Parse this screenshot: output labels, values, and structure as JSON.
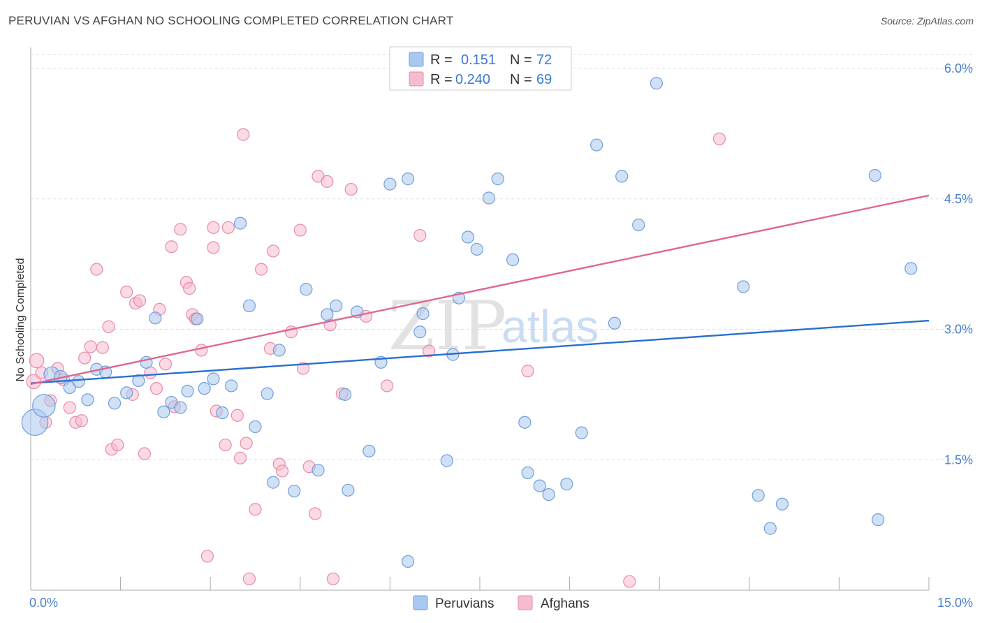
{
  "title": "PERUVIAN VS AFGHAN NO SCHOOLING COMPLETED CORRELATION CHART",
  "source": "Source: ZipAtlas.com",
  "colors": {
    "blue_fill": "#a9c8ef",
    "blue_stroke": "#6f9fdc",
    "blue_line": "#2a6fd1",
    "pink_fill": "#f5bccd",
    "pink_stroke": "#e98aa9",
    "pink_line": "#e0668f",
    "tick_text": "#4a7fcf",
    "grid": "#dddddd"
  },
  "legend": {
    "rows": [
      {
        "r_label": "R =",
        "r_value": "0.151",
        "n_label": "N =",
        "n_value": "72"
      },
      {
        "r_label": "R =",
        "r_value": "0.240",
        "n_label": "N =",
        "n_value": "69"
      }
    ]
  },
  "bottom_legend": [
    "Peruvians",
    "Afghans"
  ],
  "watermark": {
    "zip": "ZIP",
    "atlas": "atlas"
  },
  "chart_data": {
    "type": "scatter",
    "title": "PERUVIAN VS AFGHAN NO SCHOOLING COMPLETED CORRELATION CHART",
    "xlabel": "",
    "ylabel": "No Schooling Completed",
    "xlim": [
      0,
      15
    ],
    "ylim": [
      0,
      6.3
    ],
    "x_tick_labels": [
      "0.0%",
      "15.0%"
    ],
    "y_ticks": [
      1.5,
      3.0,
      4.5,
      6.0
    ],
    "y_tick_labels": [
      "1.5%",
      "3.0%",
      "4.5%",
      "6.0%"
    ],
    "grid": true,
    "series": [
      {
        "name": "Peruvians",
        "R": 0.151,
        "N": 72,
        "trend": {
          "x": [
            0,
            15
          ],
          "y": [
            2.38,
            3.1
          ]
        },
        "points": [
          {
            "x": 0.07,
            "y": 1.93,
            "s": 2.2
          },
          {
            "x": 0.22,
            "y": 2.12,
            "s": 1.9
          },
          {
            "x": 0.35,
            "y": 2.48,
            "s": 1.3
          },
          {
            "x": 0.5,
            "y": 2.45,
            "s": 1.1
          },
          {
            "x": 0.65,
            "y": 2.33,
            "s": 1
          },
          {
            "x": 0.8,
            "y": 2.4,
            "s": 1
          },
          {
            "x": 0.95,
            "y": 2.19,
            "s": 1
          },
          {
            "x": 1.1,
            "y": 2.54,
            "s": 1
          },
          {
            "x": 1.25,
            "y": 2.51,
            "s": 1
          },
          {
            "x": 1.4,
            "y": 2.15,
            "s": 1
          },
          {
            "x": 1.6,
            "y": 2.27,
            "s": 1
          },
          {
            "x": 1.8,
            "y": 2.41,
            "s": 1
          },
          {
            "x": 1.93,
            "y": 2.62,
            "s": 1
          },
          {
            "x": 2.08,
            "y": 3.13,
            "s": 1
          },
          {
            "x": 2.22,
            "y": 2.05,
            "s": 1
          },
          {
            "x": 2.35,
            "y": 2.16,
            "s": 1
          },
          {
            "x": 2.5,
            "y": 2.1,
            "s": 1
          },
          {
            "x": 2.62,
            "y": 2.29,
            "s": 1
          },
          {
            "x": 2.78,
            "y": 3.12,
            "s": 1
          },
          {
            "x": 2.9,
            "y": 2.32,
            "s": 1
          },
          {
            "x": 3.05,
            "y": 2.43,
            "s": 1
          },
          {
            "x": 3.2,
            "y": 2.04,
            "s": 1
          },
          {
            "x": 3.35,
            "y": 2.35,
            "s": 1
          },
          {
            "x": 3.5,
            "y": 4.22,
            "s": 1
          },
          {
            "x": 3.65,
            "y": 3.27,
            "s": 1
          },
          {
            "x": 3.75,
            "y": 1.88,
            "s": 1
          },
          {
            "x": 3.95,
            "y": 2.26,
            "s": 1
          },
          {
            "x": 4.05,
            "y": 1.24,
            "s": 1
          },
          {
            "x": 4.15,
            "y": 2.76,
            "s": 1
          },
          {
            "x": 4.4,
            "y": 1.14,
            "s": 1
          },
          {
            "x": 4.6,
            "y": 3.46,
            "s": 1
          },
          {
            "x": 4.8,
            "y": 1.38,
            "s": 1
          },
          {
            "x": 4.95,
            "y": 3.17,
            "s": 1
          },
          {
            "x": 5.1,
            "y": 3.27,
            "s": 1
          },
          {
            "x": 5.25,
            "y": 2.25,
            "s": 1
          },
          {
            "x": 5.3,
            "y": 1.15,
            "s": 1
          },
          {
            "x": 5.45,
            "y": 3.2,
            "s": 1
          },
          {
            "x": 5.65,
            "y": 1.6,
            "s": 1
          },
          {
            "x": 5.85,
            "y": 2.62,
            "s": 1
          },
          {
            "x": 6.0,
            "y": 4.67,
            "s": 1
          },
          {
            "x": 6.3,
            "y": 4.73,
            "s": 1
          },
          {
            "x": 6.55,
            "y": 3.18,
            "s": 1
          },
          {
            "x": 6.3,
            "y": 0.33,
            "s": 1
          },
          {
            "x": 6.5,
            "y": 2.97,
            "s": 1
          },
          {
            "x": 6.95,
            "y": 1.49,
            "s": 1
          },
          {
            "x": 7.05,
            "y": 2.71,
            "s": 1
          },
          {
            "x": 7.15,
            "y": 3.36,
            "s": 1
          },
          {
            "x": 7.3,
            "y": 4.06,
            "s": 1
          },
          {
            "x": 7.45,
            "y": 3.92,
            "s": 1
          },
          {
            "x": 7.65,
            "y": 4.51,
            "s": 1
          },
          {
            "x": 7.8,
            "y": 4.73,
            "s": 1
          },
          {
            "x": 8.05,
            "y": 3.8,
            "s": 1
          },
          {
            "x": 8.25,
            "y": 1.93,
            "s": 1
          },
          {
            "x": 8.3,
            "y": 1.35,
            "s": 1
          },
          {
            "x": 8.5,
            "y": 1.2,
            "s": 1
          },
          {
            "x": 8.65,
            "y": 1.1,
            "s": 1
          },
          {
            "x": 8.95,
            "y": 1.22,
            "s": 1
          },
          {
            "x": 9.2,
            "y": 1.81,
            "s": 1
          },
          {
            "x": 9.45,
            "y": 5.12,
            "s": 1
          },
          {
            "x": 9.75,
            "y": 3.07,
            "s": 1
          },
          {
            "x": 9.87,
            "y": 4.76,
            "s": 1
          },
          {
            "x": 10.15,
            "y": 4.2,
            "s": 1
          },
          {
            "x": 10.45,
            "y": 5.83,
            "s": 1
          },
          {
            "x": 11.9,
            "y": 3.49,
            "s": 1
          },
          {
            "x": 12.15,
            "y": 1.09,
            "s": 1
          },
          {
            "x": 12.35,
            "y": 0.71,
            "s": 1
          },
          {
            "x": 12.55,
            "y": 0.99,
            "s": 1
          },
          {
            "x": 14.1,
            "y": 4.77,
            "s": 1
          },
          {
            "x": 14.15,
            "y": 0.81,
            "s": 1
          },
          {
            "x": 14.7,
            "y": 3.7,
            "s": 1
          }
        ]
      },
      {
        "name": "Afghans",
        "R": 0.24,
        "N": 69,
        "trend": {
          "x": [
            0,
            15
          ],
          "y": [
            2.37,
            4.54
          ]
        },
        "points": [
          {
            "x": 0.05,
            "y": 2.4,
            "s": 1.2
          },
          {
            "x": 0.1,
            "y": 2.64,
            "s": 1.2
          },
          {
            "x": 0.18,
            "y": 2.5,
            "s": 1
          },
          {
            "x": 0.25,
            "y": 1.93,
            "s": 1
          },
          {
            "x": 0.33,
            "y": 2.18,
            "s": 1
          },
          {
            "x": 0.45,
            "y": 2.55,
            "s": 1
          },
          {
            "x": 0.55,
            "y": 2.42,
            "s": 1
          },
          {
            "x": 0.65,
            "y": 2.1,
            "s": 1
          },
          {
            "x": 0.75,
            "y": 1.93,
            "s": 1
          },
          {
            "x": 0.85,
            "y": 1.95,
            "s": 1
          },
          {
            "x": 0.9,
            "y": 2.67,
            "s": 1
          },
          {
            "x": 1.0,
            "y": 2.8,
            "s": 1
          },
          {
            "x": 1.1,
            "y": 3.69,
            "s": 1
          },
          {
            "x": 1.2,
            "y": 2.79,
            "s": 1
          },
          {
            "x": 1.3,
            "y": 3.03,
            "s": 1
          },
          {
            "x": 1.35,
            "y": 1.62,
            "s": 1
          },
          {
            "x": 1.45,
            "y": 1.67,
            "s": 1
          },
          {
            "x": 1.6,
            "y": 3.43,
            "s": 1
          },
          {
            "x": 1.7,
            "y": 2.25,
            "s": 1
          },
          {
            "x": 1.75,
            "y": 3.3,
            "s": 1
          },
          {
            "x": 1.82,
            "y": 3.33,
            "s": 1
          },
          {
            "x": 1.9,
            "y": 1.57,
            "s": 1
          },
          {
            "x": 2.0,
            "y": 2.5,
            "s": 1
          },
          {
            "x": 2.1,
            "y": 2.32,
            "s": 1
          },
          {
            "x": 2.15,
            "y": 3.23,
            "s": 1
          },
          {
            "x": 2.25,
            "y": 2.6,
            "s": 1
          },
          {
            "x": 2.35,
            "y": 3.95,
            "s": 1
          },
          {
            "x": 2.4,
            "y": 2.11,
            "s": 1
          },
          {
            "x": 2.5,
            "y": 4.15,
            "s": 1
          },
          {
            "x": 2.6,
            "y": 3.54,
            "s": 1
          },
          {
            "x": 2.65,
            "y": 3.47,
            "s": 1
          },
          {
            "x": 2.7,
            "y": 3.17,
            "s": 1
          },
          {
            "x": 2.75,
            "y": 3.12,
            "s": 1
          },
          {
            "x": 2.85,
            "y": 2.76,
            "s": 1
          },
          {
            "x": 2.95,
            "y": 0.39,
            "s": 1
          },
          {
            "x": 3.05,
            "y": 3.94,
            "s": 1
          },
          {
            "x": 3.05,
            "y": 4.17,
            "s": 1
          },
          {
            "x": 3.1,
            "y": 2.06,
            "s": 1
          },
          {
            "x": 3.25,
            "y": 1.67,
            "s": 1
          },
          {
            "x": 3.3,
            "y": 4.17,
            "s": 1
          },
          {
            "x": 3.45,
            "y": 2.01,
            "s": 1
          },
          {
            "x": 3.5,
            "y": 1.52,
            "s": 1
          },
          {
            "x": 3.55,
            "y": 5.24,
            "s": 1
          },
          {
            "x": 3.6,
            "y": 1.69,
            "s": 1
          },
          {
            "x": 3.65,
            "y": 0.13,
            "s": 1
          },
          {
            "x": 3.75,
            "y": 0.93,
            "s": 1
          },
          {
            "x": 3.85,
            "y": 3.69,
            "s": 1
          },
          {
            "x": 4.0,
            "y": 2.78,
            "s": 1
          },
          {
            "x": 4.05,
            "y": 3.9,
            "s": 1
          },
          {
            "x": 4.15,
            "y": 1.45,
            "s": 1
          },
          {
            "x": 4.2,
            "y": 1.37,
            "s": 1
          },
          {
            "x": 4.35,
            "y": 2.97,
            "s": 1
          },
          {
            "x": 4.5,
            "y": 4.14,
            "s": 1
          },
          {
            "x": 4.65,
            "y": 1.42,
            "s": 1
          },
          {
            "x": 4.75,
            "y": 0.88,
            "s": 1
          },
          {
            "x": 4.8,
            "y": 4.76,
            "s": 1
          },
          {
            "x": 4.95,
            "y": 4.7,
            "s": 1
          },
          {
            "x": 5.0,
            "y": 3.05,
            "s": 1
          },
          {
            "x": 5.05,
            "y": 0.13,
            "s": 1
          },
          {
            "x": 5.2,
            "y": 2.26,
            "s": 1
          },
          {
            "x": 5.35,
            "y": 4.61,
            "s": 1
          },
          {
            "x": 5.6,
            "y": 3.15,
            "s": 1
          },
          {
            "x": 5.95,
            "y": 2.35,
            "s": 1
          },
          {
            "x": 6.5,
            "y": 4.08,
            "s": 1
          },
          {
            "x": 6.65,
            "y": 2.75,
            "s": 1
          },
          {
            "x": 8.3,
            "y": 2.52,
            "s": 1
          },
          {
            "x": 10.0,
            "y": 0.1,
            "s": 1
          },
          {
            "x": 11.5,
            "y": 5.19,
            "s": 1
          },
          {
            "x": 4.55,
            "y": 2.55,
            "s": 1
          }
        ]
      }
    ]
  }
}
